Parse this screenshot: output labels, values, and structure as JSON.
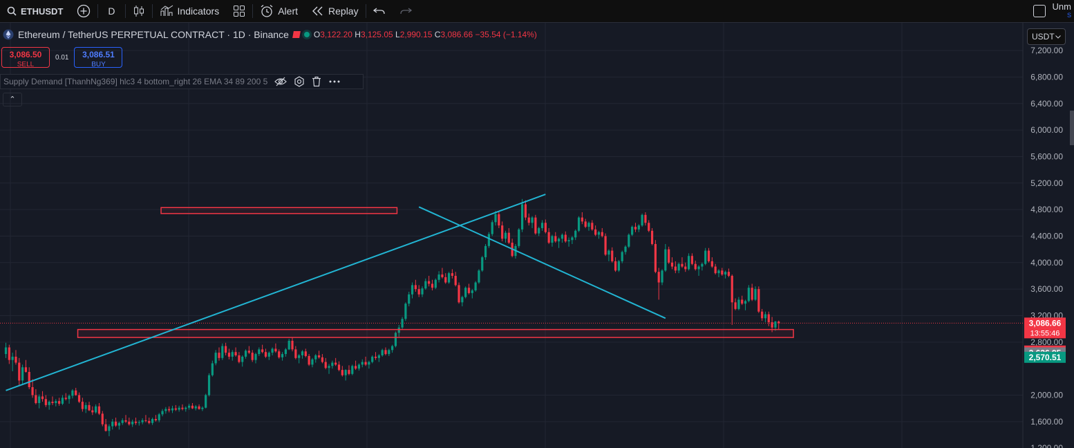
{
  "toolbar": {
    "symbol": "ETHUSDT",
    "interval": "D",
    "indicators_label": "Indicators",
    "alert_label": "Alert",
    "replay_label": "Replay",
    "right_label": "Unm",
    "right_sub": "S"
  },
  "legend": {
    "title": "Ethereum / TetherUS PERPETUAL CONTRACT · 1D · Binance",
    "o_key": "O",
    "o_val": "3,122.20",
    "h_key": "H",
    "h_val": "3,125.05",
    "l_key": "L",
    "l_val": "2,990.15",
    "c_key": "C",
    "c_val": "3,086.66",
    "change": "−35.54 (−1.14%)"
  },
  "trade": {
    "sell_price": "3,086.50",
    "sell_label": "SELL",
    "spread": "0.01",
    "buy_price": "3,086.51",
    "buy_label": "BUY"
  },
  "indicator": {
    "label": "Supply Demand [ThanhNg369] hlc3 4 bottom_right 26 EMA 34 89 200 5"
  },
  "collapse_glyph": "⌃",
  "currency": {
    "label": "USDT"
  },
  "price_axis": {
    "ticks": [
      "7,200.00",
      "6,800.00",
      "6,400.00",
      "6,000.00",
      "5,600.00",
      "5,200.00",
      "4,800.00",
      "4,400.00",
      "4,000.00",
      "3,600.00",
      "3,200.00",
      "2,800.00",
      "2,000.00",
      "1,600.00",
      "1,200.00"
    ],
    "tick_values": [
      7200,
      6800,
      6400,
      6000,
      5600,
      5200,
      4800,
      4400,
      4000,
      3600,
      3200,
      2800,
      2000,
      1600,
      1200
    ],
    "badges": [
      {
        "text": "3,086.66",
        "sub": "13:55:46",
        "value": 3086.66,
        "color": "#f23645"
      },
      {
        "text": "2,664.85",
        "value": 2664.85,
        "color": "#f23645"
      },
      {
        "text": "2,636.95",
        "value": 2636.95,
        "color": "#787b86"
      },
      {
        "text": "2,570.51",
        "value": 2570.51,
        "color": "#089981"
      }
    ]
  },
  "colors": {
    "bg": "#161a25",
    "up": "#089981",
    "down": "#f23645",
    "trendline": "#22b5d3",
    "zone": "#f23645",
    "grid": "#222633"
  },
  "chart_data": {
    "type": "candlestick",
    "current_price": 3086.66,
    "trendlines": [
      {
        "x1": 0,
        "y1": 2070,
        "x2": 162,
        "y2": 5030
      },
      {
        "x1": 124,
        "y1": 4840,
        "x2": 198,
        "y2": 3160
      }
    ],
    "zones": [
      {
        "x1": 47,
        "x2": 117,
        "top": 4830,
        "bottom": 4740
      },
      {
        "x1": 22,
        "x2": 236,
        "top": 2990,
        "bottom": 2870
      }
    ],
    "candles": [
      [
        2620,
        2790,
        2560,
        2720
      ],
      [
        2720,
        2760,
        2470,
        2530
      ],
      [
        2530,
        2640,
        2360,
        2580
      ],
      [
        2580,
        2680,
        2460,
        2490
      ],
      [
        2490,
        2560,
        2150,
        2220
      ],
      [
        2220,
        2460,
        2150,
        2420
      ],
      [
        2420,
        2530,
        2340,
        2350
      ],
      [
        2350,
        2420,
        2090,
        2120
      ],
      [
        2120,
        2240,
        1960,
        2000
      ],
      [
        2000,
        2090,
        1860,
        1880
      ],
      [
        1880,
        2010,
        1800,
        1980
      ],
      [
        1980,
        2060,
        1900,
        1940
      ],
      [
        1940,
        2000,
        1820,
        1850
      ],
      [
        1850,
        1920,
        1780,
        1900
      ],
      [
        1900,
        1980,
        1850,
        1880
      ],
      [
        1880,
        1940,
        1830,
        1910
      ],
      [
        1910,
        1960,
        1840,
        1870
      ],
      [
        1870,
        2000,
        1850,
        1960
      ],
      [
        1960,
        2030,
        1920,
        1940
      ],
      [
        1940,
        2010,
        1870,
        1990
      ],
      [
        1990,
        2090,
        1950,
        2070
      ],
      [
        2070,
        2110,
        1990,
        2000
      ],
      [
        2000,
        2040,
        1880,
        1900
      ],
      [
        1900,
        1960,
        1750,
        1790
      ],
      [
        1790,
        1890,
        1730,
        1850
      ],
      [
        1850,
        1900,
        1760,
        1770
      ],
      [
        1770,
        1830,
        1700,
        1740
      ],
      [
        1740,
        1860,
        1720,
        1830
      ],
      [
        1830,
        1880,
        1700,
        1720
      ],
      [
        1720,
        1760,
        1530,
        1560
      ],
      [
        1560,
        1640,
        1450,
        1460
      ],
      [
        1460,
        1560,
        1380,
        1530
      ],
      [
        1530,
        1640,
        1480,
        1600
      ],
      [
        1600,
        1660,
        1520,
        1540
      ],
      [
        1540,
        1600,
        1480,
        1580
      ],
      [
        1580,
        1650,
        1550,
        1620
      ],
      [
        1620,
        1700,
        1580,
        1600
      ],
      [
        1600,
        1660,
        1540,
        1560
      ],
      [
        1560,
        1630,
        1520,
        1600
      ],
      [
        1600,
        1660,
        1550,
        1580
      ],
      [
        1580,
        1620,
        1540,
        1590
      ],
      [
        1590,
        1650,
        1560,
        1620
      ],
      [
        1620,
        1700,
        1590,
        1610
      ],
      [
        1610,
        1660,
        1560,
        1580
      ],
      [
        1580,
        1660,
        1550,
        1640
      ],
      [
        1640,
        1700,
        1600,
        1620
      ],
      [
        1620,
        1730,
        1590,
        1710
      ],
      [
        1710,
        1790,
        1680,
        1760
      ],
      [
        1760,
        1820,
        1720,
        1790
      ],
      [
        1790,
        1830,
        1740,
        1770
      ],
      [
        1770,
        1840,
        1730,
        1800
      ],
      [
        1800,
        1850,
        1760,
        1780
      ],
      [
        1780,
        1840,
        1750,
        1810
      ],
      [
        1810,
        1860,
        1770,
        1790
      ],
      [
        1790,
        1830,
        1750,
        1810
      ],
      [
        1810,
        1870,
        1780,
        1840
      ],
      [
        1840,
        1880,
        1790,
        1800
      ],
      [
        1800,
        1850,
        1770,
        1830
      ],
      [
        1830,
        1860,
        1780,
        1790
      ],
      [
        1790,
        1830,
        1760,
        1810
      ],
      [
        1810,
        2020,
        1800,
        2000
      ],
      [
        2000,
        2330,
        1980,
        2300
      ],
      [
        2300,
        2520,
        2280,
        2480
      ],
      [
        2480,
        2680,
        2450,
        2640
      ],
      [
        2640,
        2720,
        2520,
        2560
      ],
      [
        2560,
        2780,
        2530,
        2740
      ],
      [
        2740,
        2790,
        2600,
        2640
      ],
      [
        2640,
        2700,
        2540,
        2580
      ],
      [
        2580,
        2680,
        2520,
        2650
      ],
      [
        2650,
        2720,
        2580,
        2600
      ],
      [
        2600,
        2650,
        2480,
        2500
      ],
      [
        2500,
        2600,
        2430,
        2580
      ],
      [
        2580,
        2690,
        2550,
        2670
      ],
      [
        2670,
        2740,
        2620,
        2640
      ],
      [
        2640,
        2680,
        2500,
        2530
      ],
      [
        2530,
        2640,
        2480,
        2620
      ],
      [
        2620,
        2720,
        2590,
        2690
      ],
      [
        2690,
        2760,
        2630,
        2650
      ],
      [
        2650,
        2700,
        2560,
        2580
      ],
      [
        2580,
        2660,
        2530,
        2640
      ],
      [
        2640,
        2720,
        2600,
        2700
      ],
      [
        2700,
        2780,
        2640,
        2660
      ],
      [
        2660,
        2690,
        2550,
        2570
      ],
      [
        2570,
        2650,
        2520,
        2620
      ],
      [
        2620,
        2710,
        2580,
        2690
      ],
      [
        2690,
        2850,
        2680,
        2820
      ],
      [
        2820,
        2870,
        2660,
        2690
      ],
      [
        2690,
        2740,
        2540,
        2560
      ],
      [
        2560,
        2620,
        2480,
        2600
      ],
      [
        2600,
        2680,
        2550,
        2660
      ],
      [
        2660,
        2700,
        2570,
        2590
      ],
      [
        2590,
        2620,
        2440,
        2460
      ],
      [
        2460,
        2560,
        2420,
        2540
      ],
      [
        2540,
        2620,
        2490,
        2600
      ],
      [
        2600,
        2670,
        2550,
        2570
      ],
      [
        2570,
        2620,
        2480,
        2500
      ],
      [
        2500,
        2560,
        2390,
        2410
      ],
      [
        2410,
        2470,
        2320,
        2440
      ],
      [
        2440,
        2520,
        2400,
        2490
      ],
      [
        2490,
        2560,
        2440,
        2460
      ],
      [
        2460,
        2510,
        2360,
        2380
      ],
      [
        2380,
        2440,
        2280,
        2300
      ],
      [
        2300,
        2390,
        2220,
        2380
      ],
      [
        2380,
        2450,
        2300,
        2320
      ],
      [
        2320,
        2460,
        2300,
        2440
      ],
      [
        2440,
        2520,
        2380,
        2400
      ],
      [
        2400,
        2480,
        2370,
        2460
      ],
      [
        2460,
        2540,
        2420,
        2500
      ],
      [
        2500,
        2580,
        2440,
        2460
      ],
      [
        2460,
        2520,
        2400,
        2500
      ],
      [
        2500,
        2600,
        2480,
        2580
      ],
      [
        2580,
        2650,
        2530,
        2560
      ],
      [
        2560,
        2620,
        2500,
        2600
      ],
      [
        2600,
        2700,
        2580,
        2680
      ],
      [
        2680,
        2720,
        2600,
        2620
      ],
      [
        2620,
        2700,
        2590,
        2680
      ],
      [
        2680,
        2760,
        2640,
        2740
      ],
      [
        2740,
        2960,
        2720,
        2940
      ],
      [
        2940,
        3060,
        2880,
        3020
      ],
      [
        3020,
        3180,
        2990,
        3150
      ],
      [
        3150,
        3400,
        3120,
        3380
      ],
      [
        3380,
        3560,
        3340,
        3520
      ],
      [
        3520,
        3700,
        3460,
        3660
      ],
      [
        3660,
        3740,
        3560,
        3600
      ],
      [
        3600,
        3660,
        3480,
        3520
      ],
      [
        3520,
        3640,
        3480,
        3610
      ],
      [
        3610,
        3760,
        3590,
        3720
      ],
      [
        3720,
        3800,
        3640,
        3680
      ],
      [
        3680,
        3740,
        3580,
        3620
      ],
      [
        3620,
        3760,
        3600,
        3740
      ],
      [
        3740,
        3870,
        3700,
        3820
      ],
      [
        3820,
        3920,
        3760,
        3780
      ],
      [
        3780,
        3840,
        3680,
        3700
      ],
      [
        3700,
        3860,
        3680,
        3840
      ],
      [
        3840,
        3900,
        3760,
        3800
      ],
      [
        3800,
        3860,
        3640,
        3660
      ],
      [
        3660,
        3700,
        3380,
        3400
      ],
      [
        3400,
        3500,
        3340,
        3480
      ],
      [
        3480,
        3640,
        3460,
        3620
      ],
      [
        3620,
        3680,
        3520,
        3540
      ],
      [
        3540,
        3600,
        3460,
        3580
      ],
      [
        3580,
        3720,
        3560,
        3700
      ],
      [
        3700,
        3900,
        3680,
        3880
      ],
      [
        3880,
        4100,
        3860,
        4080
      ],
      [
        4080,
        4280,
        4040,
        4250
      ],
      [
        4250,
        4460,
        4220,
        4430
      ],
      [
        4430,
        4640,
        4400,
        4610
      ],
      [
        4610,
        4780,
        4560,
        4730
      ],
      [
        4730,
        4780,
        4520,
        4560
      ],
      [
        4560,
        4620,
        4320,
        4360
      ],
      [
        4360,
        4480,
        4300,
        4450
      ],
      [
        4450,
        4520,
        4280,
        4300
      ],
      [
        4300,
        4360,
        4080,
        4100
      ],
      [
        4100,
        4280,
        4060,
        4250
      ],
      [
        4250,
        4520,
        4220,
        4500
      ],
      [
        4500,
        4960,
        4460,
        4880
      ],
      [
        4880,
        4940,
        4640,
        4680
      ],
      [
        4680,
        4740,
        4560,
        4600
      ],
      [
        4600,
        4700,
        4520,
        4680
      ],
      [
        4680,
        4720,
        4420,
        4440
      ],
      [
        4440,
        4540,
        4400,
        4520
      ],
      [
        4520,
        4640,
        4480,
        4600
      ],
      [
        4600,
        4650,
        4440,
        4460
      ],
      [
        4460,
        4520,
        4280,
        4300
      ],
      [
        4300,
        4420,
        4240,
        4400
      ],
      [
        4400,
        4460,
        4300,
        4320
      ],
      [
        4320,
        4380,
        4220,
        4360
      ],
      [
        4360,
        4440,
        4300,
        4420
      ],
      [
        4420,
        4470,
        4300,
        4320
      ],
      [
        4320,
        4380,
        4240,
        4340
      ],
      [
        4340,
        4400,
        4280,
        4380
      ],
      [
        4380,
        4500,
        4340,
        4480
      ],
      [
        4480,
        4700,
        4460,
        4680
      ],
      [
        4680,
        4760,
        4580,
        4620
      ],
      [
        4620,
        4660,
        4520,
        4540
      ],
      [
        4540,
        4620,
        4480,
        4600
      ],
      [
        4600,
        4640,
        4480,
        4500
      ],
      [
        4500,
        4560,
        4400,
        4420
      ],
      [
        4420,
        4480,
        4360,
        4460
      ],
      [
        4460,
        4520,
        4380,
        4400
      ],
      [
        4400,
        4440,
        4100,
        4120
      ],
      [
        4120,
        4200,
        4020,
        4180
      ],
      [
        4180,
        4230,
        4000,
        4020
      ],
      [
        4020,
        4080,
        3860,
        3880
      ],
      [
        3880,
        4040,
        3860,
        4020
      ],
      [
        4020,
        4180,
        3990,
        4160
      ],
      [
        4160,
        4260,
        4120,
        4240
      ],
      [
        4240,
        4440,
        4220,
        4420
      ],
      [
        4420,
        4560,
        4400,
        4540
      ],
      [
        4540,
        4600,
        4460,
        4500
      ],
      [
        4500,
        4580,
        4460,
        4560
      ],
      [
        4560,
        4740,
        4540,
        4720
      ],
      [
        4720,
        4760,
        4560,
        4600
      ],
      [
        4600,
        4640,
        4460,
        4480
      ],
      [
        4480,
        4520,
        4260,
        4280
      ],
      [
        4280,
        4340,
        3840,
        3860
      ],
      [
        3860,
        3920,
        3440,
        3700
      ],
      [
        3700,
        3900,
        3660,
        3880
      ],
      [
        3880,
        4280,
        3860,
        4200
      ],
      [
        4200,
        4240,
        3980,
        4000
      ],
      [
        4000,
        4080,
        3900,
        3940
      ],
      [
        3940,
        4020,
        3840,
        3880
      ],
      [
        3880,
        4000,
        3840,
        3980
      ],
      [
        3980,
        4080,
        3920,
        3940
      ],
      [
        3940,
        4000,
        3860,
        3900
      ],
      [
        3900,
        4140,
        3880,
        4100
      ],
      [
        4100,
        4140,
        3960,
        3980
      ],
      [
        3980,
        4030,
        3880,
        3900
      ],
      [
        3900,
        3960,
        3800,
        3940
      ],
      [
        3940,
        4000,
        3880,
        3980
      ],
      [
        3980,
        4220,
        3960,
        4180
      ],
      [
        4180,
        4220,
        4000,
        4020
      ],
      [
        4020,
        4080,
        3920,
        3940
      ],
      [
        3940,
        3980,
        3820,
        3840
      ],
      [
        3840,
        3900,
        3780,
        3880
      ],
      [
        3880,
        3920,
        3800,
        3820
      ],
      [
        3820,
        3880,
        3760,
        3860
      ],
      [
        3860,
        3910,
        3780,
        3800
      ],
      [
        3800,
        3820,
        3060,
        3400
      ],
      [
        3400,
        3460,
        3280,
        3300
      ],
      [
        3300,
        3480,
        3280,
        3440
      ],
      [
        3440,
        3500,
        3360,
        3380
      ],
      [
        3380,
        3440,
        3280,
        3420
      ],
      [
        3420,
        3660,
        3400,
        3620
      ],
      [
        3620,
        3680,
        3420,
        3440
      ],
      [
        3440,
        3640,
        3420,
        3600
      ],
      [
        3600,
        3640,
        3240,
        3260
      ],
      [
        3260,
        3300,
        3120,
        3160
      ],
      [
        3160,
        3260,
        3100,
        3220
      ],
      [
        3220,
        3260,
        3040,
        3100
      ],
      [
        3100,
        3180,
        2950,
        3020
      ],
      [
        3020,
        3120,
        2970,
        3110
      ],
      [
        3110,
        3125,
        2990,
        3087
      ]
    ]
  }
}
